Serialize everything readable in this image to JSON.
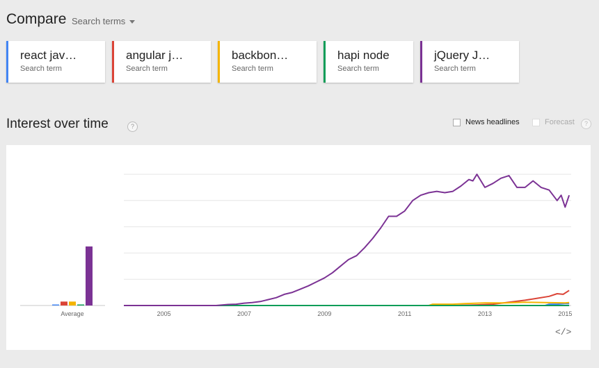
{
  "header": {
    "title": "Compare",
    "dropdown_label": "Search terms"
  },
  "terms": [
    {
      "label": "react jav…",
      "sub": "Search term",
      "color": "#4285f4"
    },
    {
      "label": "angular j…",
      "sub": "Search term",
      "color": "#db4437"
    },
    {
      "label": "backbon…",
      "sub": "Search term",
      "color": "#f4b400"
    },
    {
      "label": "hapi node",
      "sub": "Search term",
      "color": "#0f9d58"
    },
    {
      "label": "jQuery J…",
      "sub": "Search term",
      "color": "#7b3294"
    }
  ],
  "section": {
    "title": "Interest over time",
    "help": "?"
  },
  "options": {
    "news_label": "News headlines",
    "forecast_label": "Forecast",
    "help": "?"
  },
  "embed_label": "</>",
  "chart_data": {
    "type": "line",
    "average_label": "Average",
    "average_bars": [
      {
        "term": "react jav…",
        "value": 0.5
      },
      {
        "term": "angular j…",
        "value": 3
      },
      {
        "term": "backbon…",
        "value": 3
      },
      {
        "term": "hapi node",
        "value": 0.5
      },
      {
        "term": "jQuery J…",
        "value": 45
      }
    ],
    "x_ticks": [
      "2005",
      "2007",
      "2009",
      "2011",
      "2013",
      "2015"
    ],
    "x_range": [
      2004.0,
      2015.15
    ],
    "ylim": [
      0,
      100
    ],
    "gridlines": true,
    "series": [
      {
        "name": "react jav…",
        "points": [
          [
            2004.0,
            0
          ],
          [
            2014.5,
            0
          ],
          [
            2014.6,
            1
          ],
          [
            2014.8,
            1
          ],
          [
            2015.0,
            1.5
          ],
          [
            2015.1,
            1.5
          ]
        ]
      },
      {
        "name": "angular j…",
        "points": [
          [
            2004.0,
            0
          ],
          [
            2012.2,
            0
          ],
          [
            2012.8,
            0.5
          ],
          [
            2013.2,
            1
          ],
          [
            2013.6,
            2.5
          ],
          [
            2014.0,
            4
          ],
          [
            2014.3,
            5.5
          ],
          [
            2014.6,
            7
          ],
          [
            2014.8,
            9
          ],
          [
            2014.95,
            8.5
          ],
          [
            2015.1,
            11.5
          ]
        ]
      },
      {
        "name": "backbon…",
        "points": [
          [
            2004.0,
            0
          ],
          [
            2011.6,
            0
          ],
          [
            2011.7,
            1
          ],
          [
            2012.2,
            1
          ],
          [
            2012.5,
            1.5
          ],
          [
            2013.0,
            2
          ],
          [
            2013.5,
            2
          ],
          [
            2014.0,
            2.5
          ],
          [
            2014.5,
            2.2
          ],
          [
            2015.0,
            2
          ],
          [
            2015.1,
            2.3
          ]
        ]
      },
      {
        "name": "hapi node",
        "points": [
          [
            2004.0,
            0
          ],
          [
            2015.1,
            0
          ]
        ]
      },
      {
        "name": "jQuery J…",
        "points": [
          [
            2004.0,
            0
          ],
          [
            2006.3,
            0
          ],
          [
            2006.6,
            0.8
          ],
          [
            2006.8,
            1
          ],
          [
            2007.0,
            1.8
          ],
          [
            2007.2,
            2.2
          ],
          [
            2007.4,
            3
          ],
          [
            2007.6,
            4.5
          ],
          [
            2007.8,
            6
          ],
          [
            2008.0,
            8.5
          ],
          [
            2008.2,
            10
          ],
          [
            2008.4,
            12.5
          ],
          [
            2008.6,
            15
          ],
          [
            2008.8,
            18
          ],
          [
            2009.0,
            21
          ],
          [
            2009.2,
            25
          ],
          [
            2009.4,
            30
          ],
          [
            2009.6,
            35
          ],
          [
            2009.8,
            38
          ],
          [
            2010.0,
            44
          ],
          [
            2010.2,
            51
          ],
          [
            2010.4,
            59
          ],
          [
            2010.6,
            68
          ],
          [
            2010.8,
            68
          ],
          [
            2011.0,
            72
          ],
          [
            2011.2,
            80
          ],
          [
            2011.4,
            84
          ],
          [
            2011.6,
            86
          ],
          [
            2011.8,
            87
          ],
          [
            2012.0,
            86
          ],
          [
            2012.2,
            87
          ],
          [
            2012.4,
            91
          ],
          [
            2012.6,
            96
          ],
          [
            2012.7,
            95
          ],
          [
            2012.8,
            100
          ],
          [
            2013.0,
            90
          ],
          [
            2013.2,
            93
          ],
          [
            2013.4,
            97
          ],
          [
            2013.6,
            99
          ],
          [
            2013.8,
            90
          ],
          [
            2014.0,
            90
          ],
          [
            2014.2,
            95
          ],
          [
            2014.4,
            90
          ],
          [
            2014.6,
            88
          ],
          [
            2014.8,
            80
          ],
          [
            2014.9,
            84
          ],
          [
            2015.0,
            75
          ],
          [
            2015.1,
            84
          ]
        ]
      }
    ]
  }
}
